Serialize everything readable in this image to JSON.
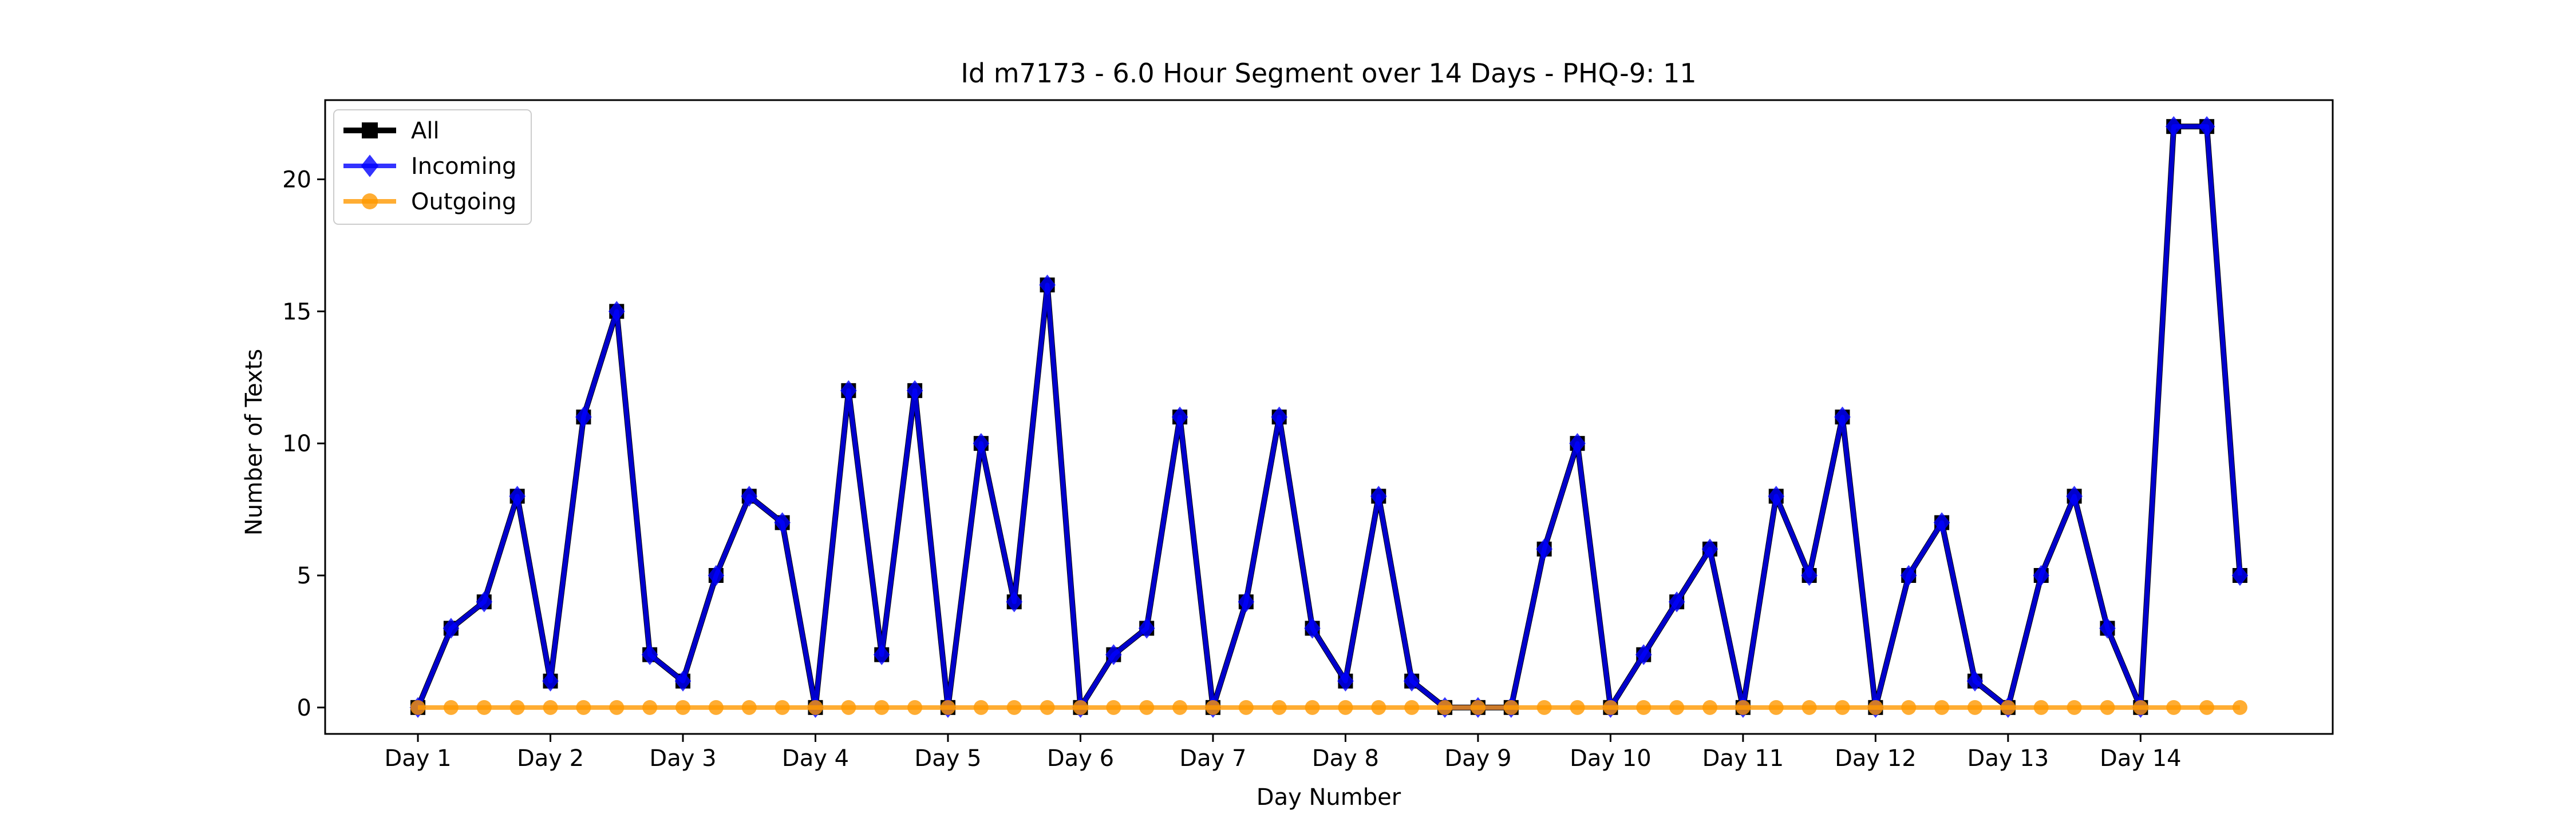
{
  "chart_data": {
    "type": "line",
    "title": "Id m7173 - 6.0 Hour Segment over 14 Days - PHQ-9: 11",
    "xlabel": "Day Number",
    "ylabel": "Number of Texts",
    "ylim": [
      -1,
      23
    ],
    "yticks": [
      0,
      5,
      10,
      15,
      20
    ],
    "xtick_labels": [
      "Day 1",
      "Day 2",
      "Day 3",
      "Day 4",
      "Day 5",
      "Day 6",
      "Day 7",
      "Day 8",
      "Day 9",
      "Day 10",
      "Day 11",
      "Day 12",
      "Day 13",
      "Day 14"
    ],
    "points_per_day": 4,
    "legend_position": "top-left",
    "grid": false,
    "series": [
      {
        "name": "All",
        "color": "#000000",
        "marker": "square",
        "values": [
          0,
          3,
          4,
          8,
          1,
          11,
          15,
          2,
          1,
          5,
          8,
          7,
          0,
          12,
          2,
          12,
          0,
          10,
          4,
          16,
          0,
          2,
          3,
          11,
          0,
          4,
          11,
          3,
          1,
          8,
          1,
          0,
          0,
          0,
          6,
          10,
          0,
          2,
          4,
          6,
          0,
          8,
          5,
          11,
          0,
          5,
          7,
          1,
          0,
          5,
          8,
          3,
          0,
          22,
          22,
          5
        ]
      },
      {
        "name": "Incoming",
        "color": "#0000ff",
        "marker": "diamond",
        "values": [
          0,
          3,
          4,
          8,
          1,
          11,
          15,
          2,
          1,
          5,
          8,
          7,
          0,
          12,
          2,
          12,
          0,
          10,
          4,
          16,
          0,
          2,
          3,
          11,
          0,
          4,
          11,
          3,
          1,
          8,
          1,
          0,
          0,
          0,
          6,
          10,
          0,
          2,
          4,
          6,
          0,
          8,
          5,
          11,
          0,
          5,
          7,
          1,
          0,
          5,
          8,
          3,
          0,
          22,
          22,
          5
        ]
      },
      {
        "name": "Outgoing",
        "color": "#ff9900",
        "marker": "circle",
        "values": [
          0,
          0,
          0,
          0,
          0,
          0,
          0,
          0,
          0,
          0,
          0,
          0,
          0,
          0,
          0,
          0,
          0,
          0,
          0,
          0,
          0,
          0,
          0,
          0,
          0,
          0,
          0,
          0,
          0,
          0,
          0,
          0,
          0,
          0,
          0,
          0,
          0,
          0,
          0,
          0,
          0,
          0,
          0,
          0,
          0,
          0,
          0,
          0,
          0,
          0,
          0,
          0,
          0,
          0,
          0,
          0
        ]
      }
    ]
  }
}
